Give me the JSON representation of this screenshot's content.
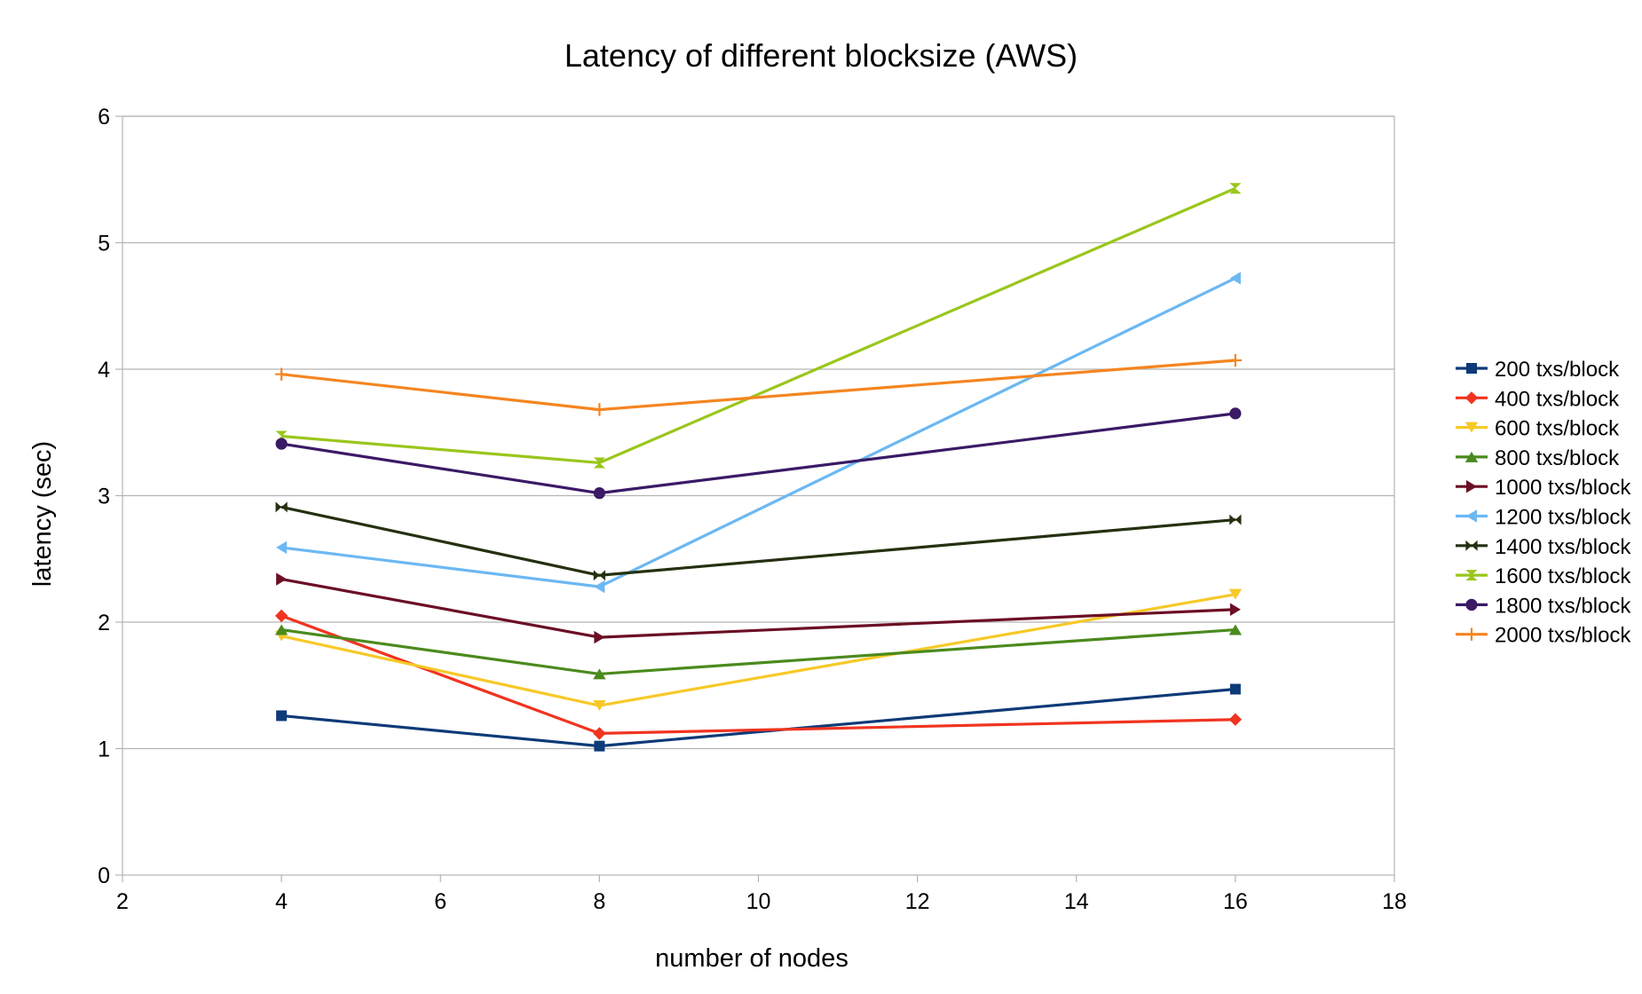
{
  "chart_data": {
    "type": "line",
    "title": "Latency of different blocksize (AWS)",
    "xlabel": "number of nodes",
    "ylabel": "latency (sec)",
    "xlim": [
      2,
      18
    ],
    "ylim": [
      0,
      6
    ],
    "xticks": [
      2,
      4,
      6,
      8,
      10,
      12,
      14,
      16,
      18
    ],
    "yticks": [
      0,
      1,
      2,
      3,
      4,
      5,
      6
    ],
    "grid": "horizontal major gridlines",
    "legend_position": "right",
    "x": [
      4,
      8,
      16
    ],
    "series": [
      {
        "name": "200 txs/block",
        "color": "#0e3a78",
        "marker": "square",
        "values": [
          1.26,
          1.02,
          1.47
        ]
      },
      {
        "name": "400 txs/block",
        "color": "#f03420",
        "marker": "diamond",
        "values": [
          2.05,
          1.12,
          1.23
        ]
      },
      {
        "name": "600 txs/block",
        "color": "#f7c928",
        "marker": "triangle-down",
        "values": [
          1.89,
          1.34,
          2.22
        ]
      },
      {
        "name": "800 txs/block",
        "color": "#4b8a1d",
        "marker": "triangle-up",
        "values": [
          1.94,
          1.59,
          1.94
        ]
      },
      {
        "name": "1000 txs/block",
        "color": "#6b0f24",
        "marker": "triangle-right",
        "values": [
          2.34,
          1.88,
          2.1
        ]
      },
      {
        "name": "1200 txs/block",
        "color": "#6cb8f2",
        "marker": "triangle-left",
        "values": [
          2.59,
          2.28,
          4.72
        ]
      },
      {
        "name": "1400 txs/block",
        "color": "#253010",
        "marker": "bowtie",
        "values": [
          2.91,
          2.37,
          2.81
        ]
      },
      {
        "name": "1600 txs/block",
        "color": "#9ac61c",
        "marker": "hourglass",
        "values": [
          3.47,
          3.26,
          5.43
        ]
      },
      {
        "name": "1800 txs/block",
        "color": "#3b1a66",
        "marker": "circle",
        "values": [
          3.41,
          3.02,
          3.65
        ]
      },
      {
        "name": "2000 txs/block",
        "color": "#f58520",
        "marker": "star",
        "values": [
          3.96,
          3.68,
          4.07
        ]
      }
    ]
  }
}
